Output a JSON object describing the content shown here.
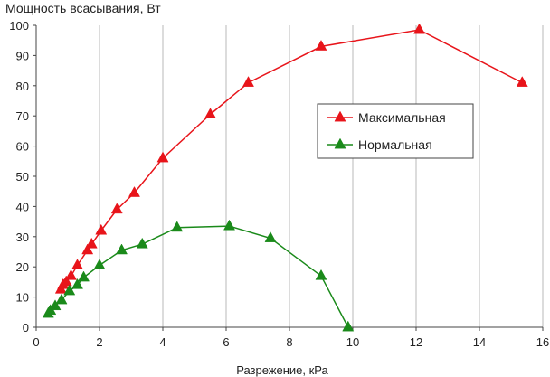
{
  "chart_data": {
    "type": "line",
    "ylabel": "Мощность всасывания, Вт",
    "xlabel": "Разрежение, кРа",
    "xlim": [
      0,
      16
    ],
    "ylim": [
      0,
      100
    ],
    "x_ticks": [
      "0",
      "2",
      "4",
      "6",
      "8",
      "10",
      "12",
      "14",
      "16"
    ],
    "y_ticks": [
      "0",
      "10",
      "20",
      "30",
      "40",
      "50",
      "60",
      "70",
      "80",
      "90",
      "100"
    ],
    "grid": "vertical",
    "legend_position": "right-middle",
    "series": [
      {
        "name": "Максимальная",
        "color": "#e8141a",
        "marker": "triangle",
        "points": [
          [
            0.78,
            12.5
          ],
          [
            0.85,
            14
          ],
          [
            0.95,
            15
          ],
          [
            1.1,
            17
          ],
          [
            1.3,
            20.5
          ],
          [
            1.62,
            25.5
          ],
          [
            1.75,
            27.5
          ],
          [
            2.05,
            32
          ],
          [
            2.55,
            39
          ],
          [
            3.1,
            44.5
          ],
          [
            4.0,
            56
          ],
          [
            5.5,
            70.5
          ],
          [
            6.7,
            81
          ],
          [
            9.0,
            93
          ],
          [
            12.1,
            98.5
          ],
          [
            15.35,
            81
          ]
        ]
      },
      {
        "name": "Нормальная",
        "color": "#1a8a1a",
        "marker": "triangle",
        "points": [
          [
            0.38,
            4.5
          ],
          [
            0.45,
            5.5
          ],
          [
            0.6,
            7
          ],
          [
            0.8,
            9
          ],
          [
            1.05,
            12
          ],
          [
            1.3,
            14
          ],
          [
            1.5,
            16.5
          ],
          [
            2.0,
            20.5
          ],
          [
            2.7,
            25.5
          ],
          [
            3.35,
            27.5
          ],
          [
            4.45,
            33
          ],
          [
            6.1,
            33.5
          ],
          [
            7.4,
            29.5
          ],
          [
            9.0,
            17
          ],
          [
            9.85,
            0
          ]
        ]
      }
    ]
  }
}
